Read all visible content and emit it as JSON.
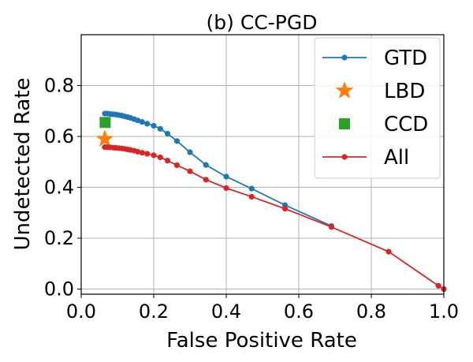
{
  "chart_data": {
    "type": "line",
    "title": "(b) CC-PGD",
    "xlabel": "False Positive Rate",
    "ylabel": "Undetected Rate",
    "xlim": [
      0.0,
      1.0
    ],
    "ylim": [
      -0.02,
      1.0
    ],
    "xticks": [
      0.0,
      0.2,
      0.4,
      0.6,
      0.8,
      1.0
    ],
    "xtick_labels": [
      "0.0",
      "0.2",
      "0.4",
      "0.6",
      "0.8",
      "1.0"
    ],
    "yticks": [
      0.0,
      0.2,
      0.4,
      0.6,
      0.8
    ],
    "ytick_labels": [
      "0.0",
      "0.2",
      "0.4",
      "0.6",
      "0.8"
    ],
    "grid": true,
    "legend_position": "top-right",
    "series": [
      {
        "name": "GTD",
        "kind": "line-marker",
        "color": "#1f77b4",
        "x": [
          0.065,
          0.072,
          0.08,
          0.088,
          0.096,
          0.104,
          0.112,
          0.12,
          0.128,
          0.136,
          0.146,
          0.156,
          0.168,
          0.182,
          0.2,
          0.218,
          0.238,
          0.264,
          0.3,
          0.344,
          0.4,
          0.47,
          0.562,
          0.69
        ],
        "y": [
          0.69,
          0.69,
          0.688,
          0.687,
          0.686,
          0.684,
          0.682,
          0.679,
          0.676,
          0.673,
          0.668,
          0.663,
          0.657,
          0.65,
          0.642,
          0.63,
          0.611,
          0.582,
          0.538,
          0.488,
          0.442,
          0.395,
          0.33,
          0.248
        ]
      },
      {
        "name": "LBD",
        "kind": "star",
        "color": "#ff7f0e",
        "x": [
          0.065
        ],
        "y": [
          0.59
        ]
      },
      {
        "name": "CCD",
        "kind": "square",
        "color": "#2ca02c",
        "x": [
          0.066
        ],
        "y": [
          0.655
        ]
      },
      {
        "name": "All",
        "kind": "line-marker",
        "color": "#d62728",
        "x": [
          0.065,
          0.072,
          0.08,
          0.088,
          0.096,
          0.104,
          0.112,
          0.12,
          0.128,
          0.136,
          0.146,
          0.156,
          0.168,
          0.182,
          0.2,
          0.218,
          0.238,
          0.264,
          0.3,
          0.344,
          0.4,
          0.47,
          0.562,
          0.69,
          0.848,
          0.985,
          1.0
        ],
        "y": [
          0.558,
          0.558,
          0.557,
          0.556,
          0.555,
          0.554,
          0.553,
          0.551,
          0.549,
          0.547,
          0.544,
          0.54,
          0.536,
          0.532,
          0.526,
          0.518,
          0.505,
          0.487,
          0.463,
          0.43,
          0.397,
          0.363,
          0.316,
          0.244,
          0.147,
          0.013,
          0.0
        ]
      }
    ]
  }
}
